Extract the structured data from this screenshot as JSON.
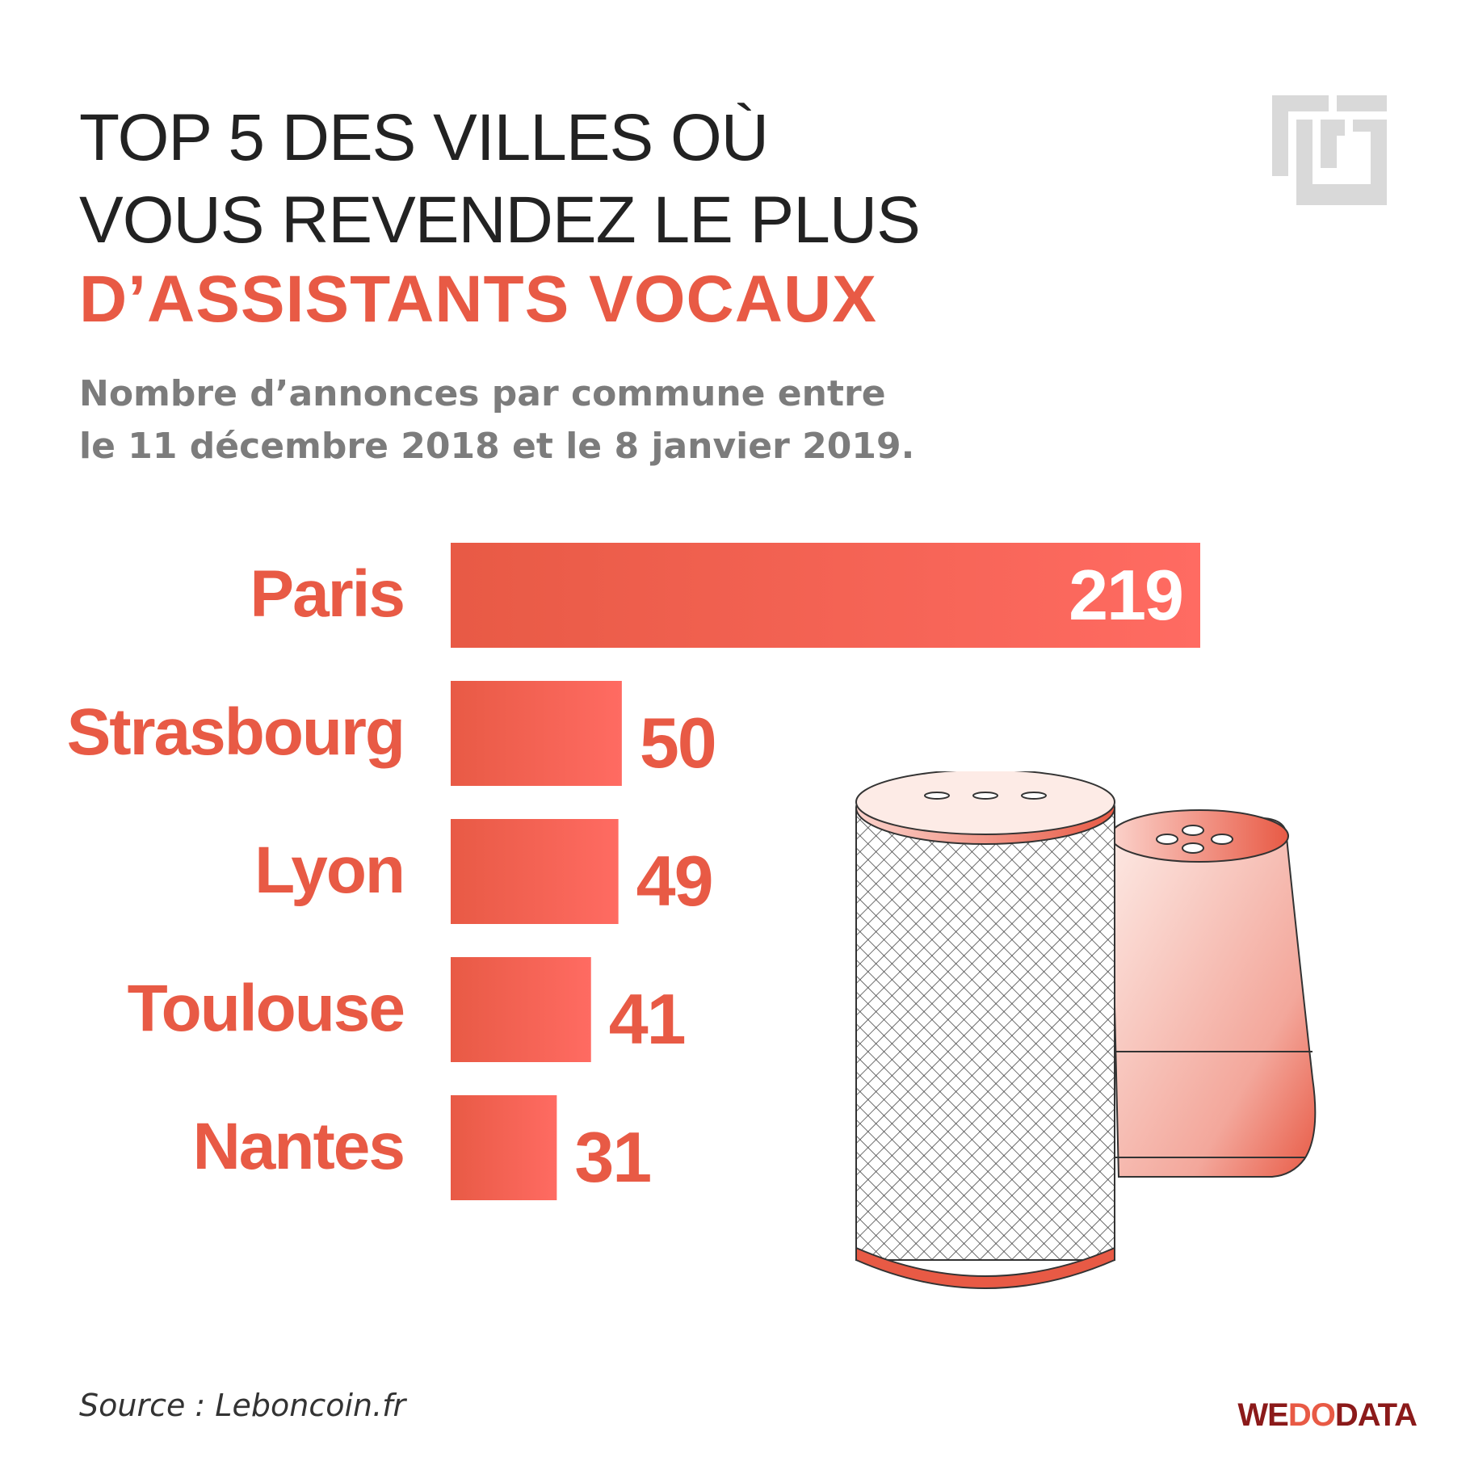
{
  "header": {
    "title_line1": "TOP 5 DES VILLES OÙ",
    "title_line2": "VOUS REVENDEZ LE PLUS",
    "title_line3": "D’ASSISTANTS VOCAUX",
    "subtitle_line1": "Nombre d’annonces par commune entre",
    "subtitle_line2": "le 11 décembre 2018 et le 8 janvier 2019."
  },
  "footer": {
    "source": "Source : Leboncoin.fr",
    "brand_we": "WE",
    "brand_do": "DO",
    "brand_data": "DATA"
  },
  "colors": {
    "accent": "#e85a45",
    "bar_light": "#ff6b62",
    "title": "#222222",
    "subtitle": "#7c7c7c",
    "logo_grey": "#d9d9d9",
    "brand_dark": "#8b1a1a"
  },
  "icons": {
    "logo": "meander-logo-icon",
    "illustration": "smart-speakers-illustration"
  },
  "chart_data": {
    "type": "bar",
    "orientation": "horizontal",
    "categories": [
      "Paris",
      "Strasbourg",
      "Lyon",
      "Toulouse",
      "Nantes"
    ],
    "values": [
      219,
      50,
      49,
      41,
      31
    ],
    "xlim": [
      0,
      219
    ],
    "grid": false,
    "legend": "none"
  }
}
